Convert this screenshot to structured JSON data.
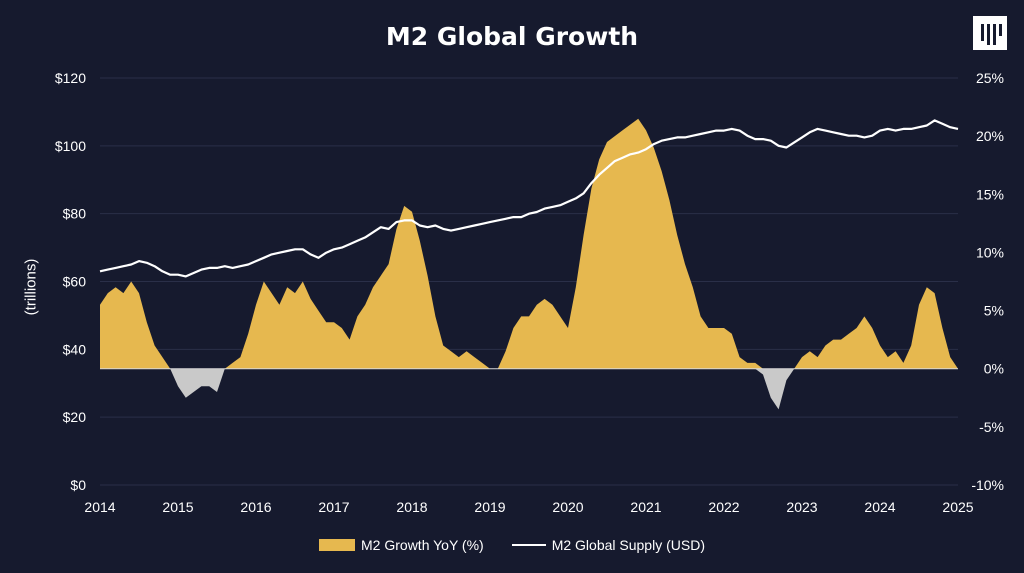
{
  "chart_data": {
    "type": "area",
    "title": "M2 Global Growth",
    "xlabel": "",
    "ylabel_left": "(trillions)",
    "ylabel_right": "",
    "xlim": [
      2014,
      2025
    ],
    "ylim_left": [
      0,
      120
    ],
    "ylim_right": [
      -10,
      25
    ],
    "x_ticks": [
      "2014",
      "2015",
      "2016",
      "2017",
      "2018",
      "2019",
      "2020",
      "2021",
      "2022",
      "2023",
      "2024",
      "2025"
    ],
    "y_left_ticks": [
      "$0",
      "$20",
      "$40",
      "$60",
      "$80",
      "$100",
      "$120"
    ],
    "y_right_ticks": [
      "-10%",
      "-5%",
      "0%",
      "5%",
      "10%",
      "15%",
      "20%",
      "25%"
    ],
    "grid": "horizontal",
    "legend_position": "bottom",
    "colors": {
      "growth_positive": "#e6b84f",
      "growth_negative": "#c9c9c9",
      "supply": "#ffffff",
      "background": "#161a2e",
      "grid": "#2a2f48"
    },
    "series": [
      {
        "name": "M2 Growth YoY (%)",
        "axis": "right",
        "type": "area",
        "x": [
          2014.0,
          2014.1,
          2014.2,
          2014.3,
          2014.4,
          2014.5,
          2014.6,
          2014.7,
          2014.8,
          2014.9,
          2015.0,
          2015.1,
          2015.2,
          2015.3,
          2015.4,
          2015.5,
          2015.6,
          2015.7,
          2015.8,
          2015.9,
          2016.0,
          2016.1,
          2016.2,
          2016.3,
          2016.4,
          2016.5,
          2016.6,
          2016.7,
          2016.8,
          2016.9,
          2017.0,
          2017.1,
          2017.2,
          2017.3,
          2017.4,
          2017.5,
          2017.6,
          2017.7,
          2017.8,
          2017.9,
          2018.0,
          2018.1,
          2018.2,
          2018.3,
          2018.4,
          2018.5,
          2018.6,
          2018.7,
          2018.8,
          2018.9,
          2019.0,
          2019.1,
          2019.2,
          2019.3,
          2019.4,
          2019.5,
          2019.6,
          2019.7,
          2019.8,
          2019.9,
          2020.0,
          2020.1,
          2020.2,
          2020.3,
          2020.4,
          2020.5,
          2020.6,
          2020.7,
          2020.8,
          2020.9,
          2021.0,
          2021.1,
          2021.2,
          2021.3,
          2021.4,
          2021.5,
          2021.6,
          2021.7,
          2021.8,
          2021.9,
          2022.0,
          2022.1,
          2022.2,
          2022.3,
          2022.4,
          2022.5,
          2022.6,
          2022.7,
          2022.8,
          2022.9,
          2023.0,
          2023.1,
          2023.2,
          2023.3,
          2023.4,
          2023.5,
          2023.6,
          2023.7,
          2023.8,
          2023.9,
          2024.0,
          2024.1,
          2024.2,
          2024.3,
          2024.4,
          2024.5,
          2024.6,
          2024.7,
          2024.8,
          2024.9,
          2025.0
        ],
        "values": [
          5.5,
          6.5,
          7.0,
          6.5,
          7.5,
          6.5,
          4.0,
          2.0,
          1.0,
          0.0,
          -1.5,
          -2.5,
          -2.0,
          -1.5,
          -1.5,
          -2.0,
          0.0,
          0.5,
          1.0,
          3.0,
          5.5,
          7.5,
          6.5,
          5.5,
          7.0,
          6.5,
          7.5,
          6.0,
          5.0,
          4.0,
          4.0,
          3.5,
          2.5,
          4.5,
          5.5,
          7.0,
          8.0,
          9.0,
          12.0,
          14.0,
          13.5,
          11.0,
          8.0,
          4.5,
          2.0,
          1.5,
          1.0,
          1.5,
          1.0,
          0.5,
          0.0,
          0.0,
          1.5,
          3.5,
          4.5,
          4.5,
          5.5,
          6.0,
          5.5,
          4.5,
          3.5,
          7.0,
          11.5,
          15.5,
          18.0,
          19.5,
          20.0,
          20.5,
          21.0,
          21.5,
          20.5,
          19.0,
          17.0,
          14.5,
          11.5,
          9.0,
          7.0,
          4.5,
          3.5,
          3.5,
          3.5,
          3.0,
          1.0,
          0.5,
          0.5,
          -0.5,
          -2.5,
          -3.5,
          -1.0,
          0.0,
          1.0,
          1.5,
          1.0,
          2.0,
          2.5,
          2.5,
          3.0,
          3.5,
          4.5,
          3.5,
          2.0,
          1.0,
          1.5,
          0.5,
          2.0,
          5.5,
          7.0,
          6.5,
          3.5,
          1.0,
          0.0
        ]
      },
      {
        "name": "M2 Global Supply (USD)",
        "axis": "left",
        "type": "line",
        "x": [
          2014.0,
          2014.1,
          2014.2,
          2014.3,
          2014.4,
          2014.5,
          2014.6,
          2014.7,
          2014.8,
          2014.9,
          2015.0,
          2015.1,
          2015.2,
          2015.3,
          2015.4,
          2015.5,
          2015.6,
          2015.7,
          2015.8,
          2015.9,
          2016.0,
          2016.1,
          2016.2,
          2016.3,
          2016.4,
          2016.5,
          2016.6,
          2016.7,
          2016.8,
          2016.9,
          2017.0,
          2017.1,
          2017.2,
          2017.3,
          2017.4,
          2017.5,
          2017.6,
          2017.7,
          2017.8,
          2017.9,
          2018.0,
          2018.1,
          2018.2,
          2018.3,
          2018.4,
          2018.5,
          2018.6,
          2018.7,
          2018.8,
          2018.9,
          2019.0,
          2019.1,
          2019.2,
          2019.3,
          2019.4,
          2019.5,
          2019.6,
          2019.7,
          2019.8,
          2019.9,
          2020.0,
          2020.1,
          2020.2,
          2020.3,
          2020.4,
          2020.5,
          2020.6,
          2020.7,
          2020.8,
          2020.9,
          2021.0,
          2021.1,
          2021.2,
          2021.3,
          2021.4,
          2021.5,
          2021.6,
          2021.7,
          2021.8,
          2021.9,
          2022.0,
          2022.1,
          2022.2,
          2022.3,
          2022.4,
          2022.5,
          2022.6,
          2022.7,
          2022.8,
          2022.9,
          2023.0,
          2023.1,
          2023.2,
          2023.3,
          2023.4,
          2023.5,
          2023.6,
          2023.7,
          2023.8,
          2023.9,
          2024.0,
          2024.1,
          2024.2,
          2024.3,
          2024.4,
          2024.5,
          2024.6,
          2024.7,
          2024.8,
          2024.9,
          2025.0
        ],
        "values": [
          63.0,
          63.5,
          64.0,
          64.5,
          65.0,
          66.0,
          65.5,
          64.5,
          63.0,
          62.0,
          62.0,
          61.5,
          62.5,
          63.5,
          64.0,
          64.0,
          64.5,
          64.0,
          64.5,
          65.0,
          66.0,
          67.0,
          68.0,
          68.5,
          69.0,
          69.5,
          69.5,
          68.0,
          67.0,
          68.5,
          69.5,
          70.0,
          71.0,
          72.0,
          73.0,
          74.5,
          76.0,
          75.5,
          77.5,
          78.0,
          78.0,
          76.5,
          76.0,
          76.5,
          75.5,
          75.0,
          75.5,
          76.0,
          76.5,
          77.0,
          77.5,
          78.0,
          78.5,
          79.0,
          79.0,
          80.0,
          80.5,
          81.5,
          82.0,
          82.5,
          83.5,
          84.5,
          86.0,
          89.0,
          91.5,
          93.5,
          95.5,
          96.5,
          97.5,
          98.0,
          99.0,
          100.5,
          101.5,
          102.0,
          102.5,
          102.5,
          103.0,
          103.5,
          104.0,
          104.5,
          104.5,
          105.0,
          104.5,
          103.0,
          102.0,
          102.0,
          101.5,
          100.0,
          99.5,
          101.0,
          102.5,
          104.0,
          105.0,
          104.5,
          104.0,
          103.5,
          103.0,
          103.0,
          102.5,
          103.0,
          104.5,
          105.0,
          104.5,
          105.0,
          105.0,
          105.5,
          106.0,
          107.5,
          106.5,
          105.5,
          105.0
        ]
      }
    ]
  }
}
